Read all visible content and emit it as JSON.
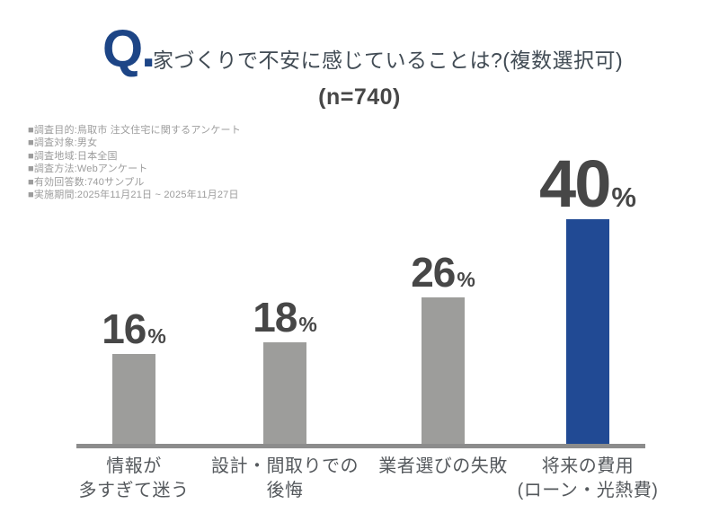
{
  "header": {
    "q_mark": "Q.",
    "title": "家づくりで不安に感じていることは?(複数選択可)",
    "sample_size": "(n=740)"
  },
  "survey_info": {
    "lines": [
      "■調査目的:鳥取市 注文住宅に関するアンケート",
      "■調査対象:男女",
      "■調査地域:日本全国",
      "■調査方法:Webアンケート",
      "■有効回答数:740サンプル",
      "■実施期間:2025年11月21日 ~ 2025年11月27日"
    ]
  },
  "chart_data": {
    "type": "bar",
    "title": "家づくりで不安に感じていることは?(複数選択可)",
    "subtitle": "(n=740)",
    "categories": [
      "情報が\n多すぎて迷う",
      "設計・間取りでの\n後悔",
      "業者選びの失敗",
      "将来の費用\n(ローン・光熱費)"
    ],
    "values": [
      16,
      18,
      26,
      40
    ],
    "unit": "%",
    "highlight_index": 3,
    "bar_color": "#9d9d9b",
    "highlight_color": "#214a94",
    "axis_color": "#8c8c8c",
    "value_label_color": "#474747",
    "accent_blue": "#1d4586",
    "ylim": [
      0,
      45
    ],
    "grid": false,
    "legend": false
  }
}
